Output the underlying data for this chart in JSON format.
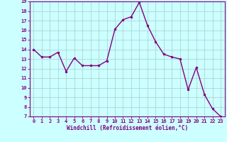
{
  "x": [
    0,
    1,
    2,
    3,
    4,
    5,
    6,
    7,
    8,
    9,
    10,
    11,
    12,
    13,
    14,
    15,
    16,
    17,
    18,
    19,
    20,
    21,
    22,
    23
  ],
  "y": [
    14.0,
    13.2,
    13.2,
    13.7,
    11.7,
    13.1,
    12.3,
    12.3,
    12.3,
    12.8,
    16.1,
    17.1,
    17.4,
    18.9,
    16.5,
    14.8,
    13.5,
    13.2,
    13.0,
    9.8,
    12.1,
    9.3,
    7.8,
    7.0
  ],
  "line_color": "#800080",
  "marker": "o",
  "markersize": 2,
  "linewidth": 1.0,
  "bg_color": "#ccffff",
  "grid_color": "#aacccc",
  "xlabel": "Windchill (Refroidissement éolien,°C)",
  "xlabel_color": "#800080",
  "tick_color": "#800080",
  "label_fontsize": 5.0,
  "xlabel_fontsize": 5.5,
  "ylim": [
    7,
    19
  ],
  "xlim_min": -0.5,
  "xlim_max": 23.5,
  "yticks": [
    7,
    8,
    9,
    10,
    11,
    12,
    13,
    14,
    15,
    16,
    17,
    18,
    19
  ],
  "xticks": [
    0,
    1,
    2,
    3,
    4,
    5,
    6,
    7,
    8,
    9,
    10,
    11,
    12,
    13,
    14,
    15,
    16,
    17,
    18,
    19,
    20,
    21,
    22,
    23
  ]
}
